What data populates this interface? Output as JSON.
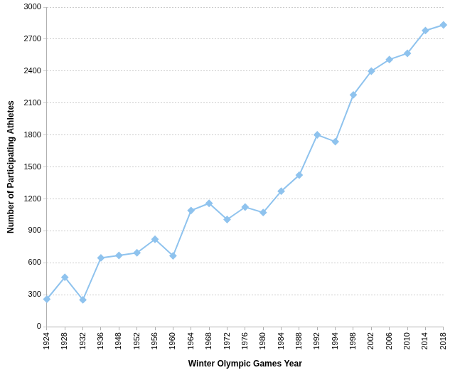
{
  "chart_data": {
    "type": "line",
    "x_label": "Winter Olympic Games Year",
    "y_label": "Number of Participating Athletes",
    "categories": [
      "1924",
      "1928",
      "1932",
      "1936",
      "1948",
      "1952",
      "1956",
      "1960",
      "1964",
      "1968",
      "1972",
      "1976",
      "1980",
      "1984",
      "1988",
      "1992",
      "1994",
      "1998",
      "2002",
      "2006",
      "2010",
      "2014",
      "2018"
    ],
    "values": [
      258,
      464,
      252,
      646,
      669,
      694,
      821,
      665,
      1091,
      1158,
      1006,
      1123,
      1072,
      1272,
      1423,
      1801,
      1737,
      2176,
      2399,
      2508,
      2566,
      2780,
      2833
    ],
    "color": "#8fc3ee",
    "marker": "diamond",
    "line_style": "solid",
    "ylim": [
      0,
      3000
    ],
    "yticks": [
      0,
      300,
      600,
      900,
      1200,
      1500,
      1800,
      2100,
      2400,
      2700,
      3000
    ],
    "grid": true
  }
}
